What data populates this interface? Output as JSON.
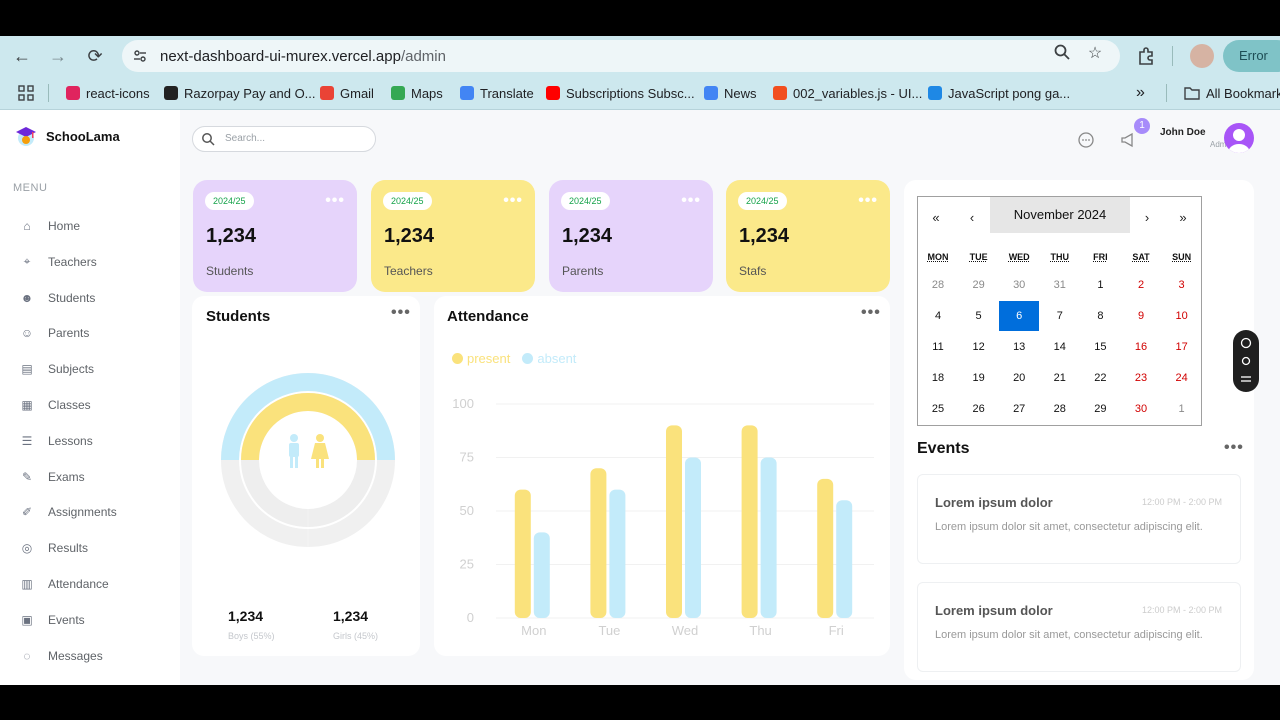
{
  "browser": {
    "url_host": "next-dashboard-ui-murex.vercel.app",
    "url_path": "/admin",
    "error_label": "Error",
    "bookmarks": [
      {
        "label": "react-icons",
        "color": "#e0245e"
      },
      {
        "label": "Razorpay Pay and O...",
        "color": "#222222"
      },
      {
        "label": "Gmail",
        "color": "#ea4335"
      },
      {
        "label": "Maps",
        "color": "#34a853"
      },
      {
        "label": "Translate",
        "color": "#4285f4"
      },
      {
        "label": "Subscriptions Subsc...",
        "color": "#ff0000"
      },
      {
        "label": "News",
        "color": "#4285f4"
      },
      {
        "label": "002_variables.js - UI...",
        "color": "#f24e1e"
      },
      {
        "label": "JavaScript pong ga...",
        "color": "#1e88e5"
      }
    ],
    "more_label": "»",
    "all_bookmarks": "All Bookmarks"
  },
  "app": {
    "logo": "SchooLama",
    "menu_title": "MENU",
    "menu": [
      {
        "label": "Home",
        "icon": "home-icon"
      },
      {
        "label": "Teachers",
        "icon": "teacher-icon"
      },
      {
        "label": "Students",
        "icon": "students-icon"
      },
      {
        "label": "Parents",
        "icon": "parent-icon"
      },
      {
        "label": "Subjects",
        "icon": "subject-icon"
      },
      {
        "label": "Classes",
        "icon": "class-icon"
      },
      {
        "label": "Lessons",
        "icon": "lesson-icon"
      },
      {
        "label": "Exams",
        "icon": "exam-icon"
      },
      {
        "label": "Assignments",
        "icon": "assignment-icon"
      },
      {
        "label": "Results",
        "icon": "result-icon"
      },
      {
        "label": "Attendance",
        "icon": "attendance-icon"
      },
      {
        "label": "Events",
        "icon": "calendar-icon"
      },
      {
        "label": "Messages",
        "icon": "message-icon"
      }
    ],
    "search_placeholder": "Search...",
    "notification_count": "1",
    "user": {
      "name": "John Doe",
      "role": "Admin"
    },
    "cards": [
      {
        "year": "2024/25",
        "value": "1,234",
        "label": "Students",
        "color": "#e6d4fb"
      },
      {
        "year": "2024/25",
        "value": "1,234",
        "label": "Teachers",
        "color": "#fbe98a"
      },
      {
        "year": "2024/25",
        "value": "1,234",
        "label": "Parents",
        "color": "#e6d4fb"
      },
      {
        "year": "2024/25",
        "value": "1,234",
        "label": "Stafs",
        "color": "#fbe98a"
      }
    ],
    "students_panel": {
      "title": "Students",
      "boys": {
        "value": "1,234",
        "caption": "Boys (55%)"
      },
      "girls": {
        "value": "1,234",
        "caption": "Girls (45%)"
      }
    },
    "attendance_panel": {
      "title": "Attendance"
    },
    "calendar": {
      "month_label": "November 2024",
      "nav": [
        "«",
        "‹",
        "›",
        "»"
      ],
      "weekdays": [
        "MON",
        "TUE",
        "WED",
        "THU",
        "FRI",
        "SAT",
        "SUN"
      ],
      "weeks": [
        [
          "28",
          "29",
          "30",
          "31",
          "1",
          "2",
          "3"
        ],
        [
          "4",
          "5",
          "6",
          "7",
          "8",
          "9",
          "10"
        ],
        [
          "11",
          "12",
          "13",
          "14",
          "15",
          "16",
          "17"
        ],
        [
          "18",
          "19",
          "20",
          "21",
          "22",
          "23",
          "24"
        ],
        [
          "25",
          "26",
          "27",
          "28",
          "29",
          "30",
          "1"
        ]
      ],
      "today": "6"
    },
    "events": {
      "title": "Events",
      "items": [
        {
          "title": "Lorem ipsum dolor",
          "time": "12:00 PM - 2:00 PM",
          "description": "Lorem ipsum dolor sit amet, consectetur adipiscing elit."
        },
        {
          "title": "Lorem ipsum dolor",
          "time": "12:00 PM - 2:00 PM",
          "description": "Lorem ipsum dolor sit amet, consectetur adipiscing elit."
        }
      ]
    }
  },
  "colors": {
    "yellow": "#fae27c",
    "sky": "#c3ebfa",
    "purple": "#cfceff",
    "blue": "#006edc"
  },
  "chart_data": [
    {
      "type": "pie",
      "title": "Students",
      "categories": [
        "Boys",
        "Girls"
      ],
      "values": [
        55,
        45
      ]
    },
    {
      "type": "bar",
      "title": "Attendance",
      "categories": [
        "Mon",
        "Tue",
        "Wed",
        "Thu",
        "Fri"
      ],
      "series": [
        {
          "name": "present",
          "color": "#fae27c",
          "values": [
            60,
            70,
            90,
            90,
            65
          ]
        },
        {
          "name": "absent",
          "color": "#c3ebfa",
          "values": [
            40,
            60,
            75,
            75,
            55
          ]
        }
      ],
      "yticks": [
        0,
        25,
        50,
        75,
        100
      ],
      "ylim": [
        0,
        100
      ],
      "grid": true,
      "legend": "top-left"
    }
  ]
}
